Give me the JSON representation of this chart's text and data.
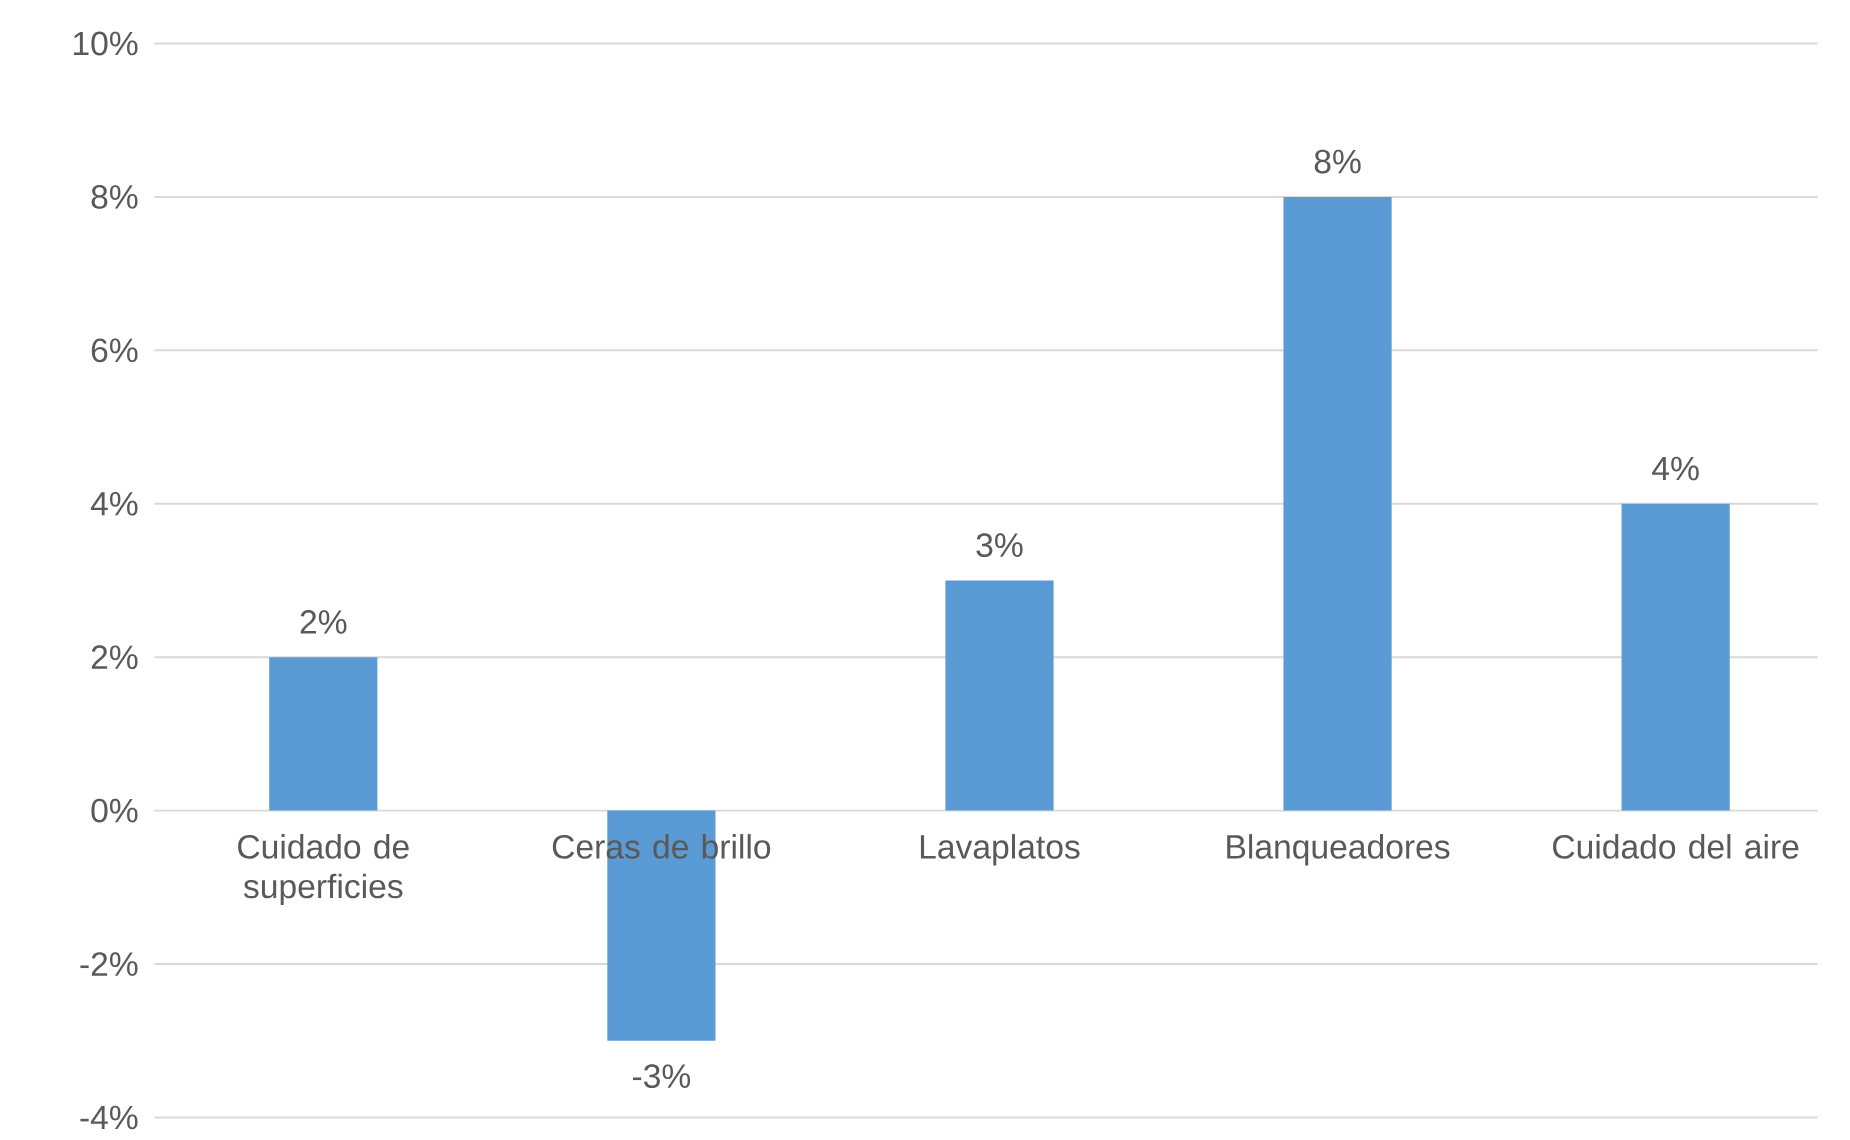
{
  "chart_data": {
    "type": "bar",
    "categories": [
      "Cuidado de superficies",
      "Ceras de brillo",
      "Lavaplatos",
      "Blanqueadores",
      "Cuidado del aire"
    ],
    "values": [
      2,
      -3,
      3,
      8,
      4
    ],
    "value_labels": [
      "2%",
      "-3%",
      "3%",
      "8%",
      "4%"
    ],
    "color": "#5b9bd5",
    "ylim": [
      -4,
      10
    ],
    "yticks": [
      {
        "value": -4,
        "label": "-4%"
      },
      {
        "value": -2,
        "label": "-2%"
      },
      {
        "value": 0,
        "label": "0%"
      },
      {
        "value": 2,
        "label": "2%"
      },
      {
        "value": 4,
        "label": "4%"
      },
      {
        "value": 6,
        "label": "6%"
      },
      {
        "value": 8,
        "label": "8%"
      },
      {
        "value": 10,
        "label": "10%"
      }
    ],
    "grid": "y"
  }
}
